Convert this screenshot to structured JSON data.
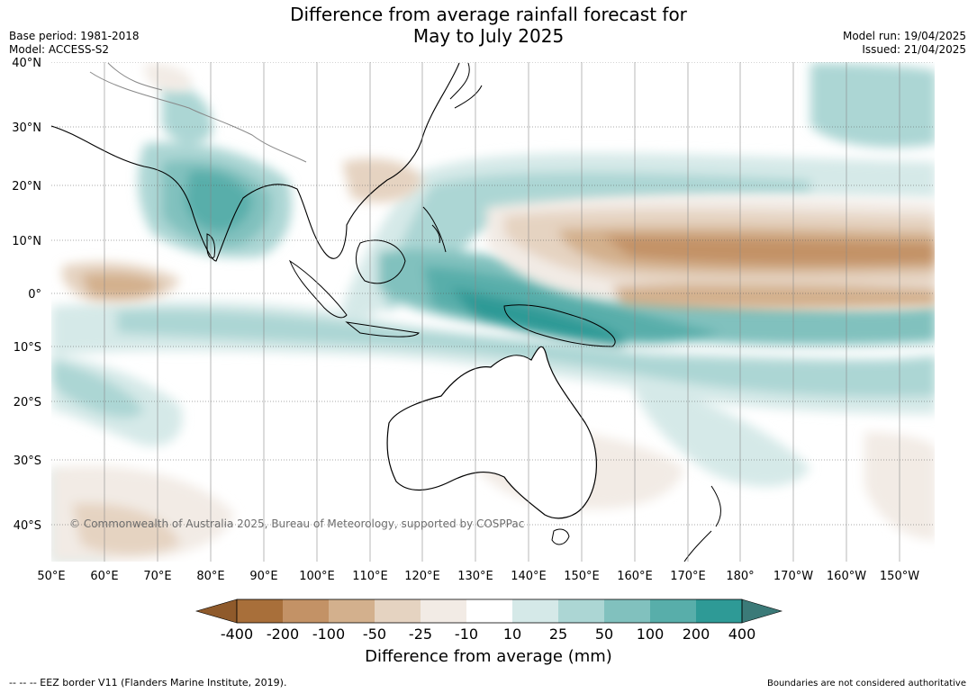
{
  "header": {
    "title_line1": "Difference from average rainfall forecast for",
    "title_line2": "May to July 2025",
    "base_period": "Base period: 1981-2018",
    "model": "Model: ACCESS-S2",
    "model_run": "Model run: 19/04/2025",
    "issued": "Issued: 21/04/2025"
  },
  "map": {
    "lat_labels": [
      "40°N",
      "30°N",
      "20°N",
      "10°N",
      "0°",
      "10°S",
      "20°S",
      "30°S",
      "40°S"
    ],
    "lon_labels": [
      "50°E",
      "60°E",
      "70°E",
      "80°E",
      "90°E",
      "100°E",
      "110°E",
      "120°E",
      "130°E",
      "140°E",
      "150°E",
      "160°E",
      "170°E",
      "180°",
      "170°W",
      "160°W",
      "150°W"
    ],
    "copyright": "© Commonwealth of Australia 2025, Bureau of Meteorology, supported by COSPPac",
    "colors": {
      "dry_400": "#a86f3a",
      "dry_200": "#c39266",
      "dry_100": "#d3b08d",
      "dry_50": "#e5d3c1",
      "dry_25": "#f2ebe5",
      "neutral": "#ffffff",
      "wet_25": "#d5e9e8",
      "wet_50": "#acd6d4",
      "wet_100": "#81c1be",
      "wet_200": "#58aeaa",
      "wet_400": "#2e9a96",
      "wet_max": "#3b7a78",
      "dry_max": "#8f5a2b",
      "land": "#ffffff",
      "coast": "#000000"
    }
  },
  "colorbar": {
    "ticks": [
      "-400",
      "-200",
      "-100",
      "-50",
      "-25",
      "-10",
      "10",
      "25",
      "50",
      "100",
      "200",
      "400"
    ],
    "label": "Difference from average (mm)"
  },
  "footer": {
    "eez": "--  --  -- EEZ border V11 (Flanders Marine Institute, 2019).",
    "boundaries": "Boundaries are not considered authoritative"
  }
}
